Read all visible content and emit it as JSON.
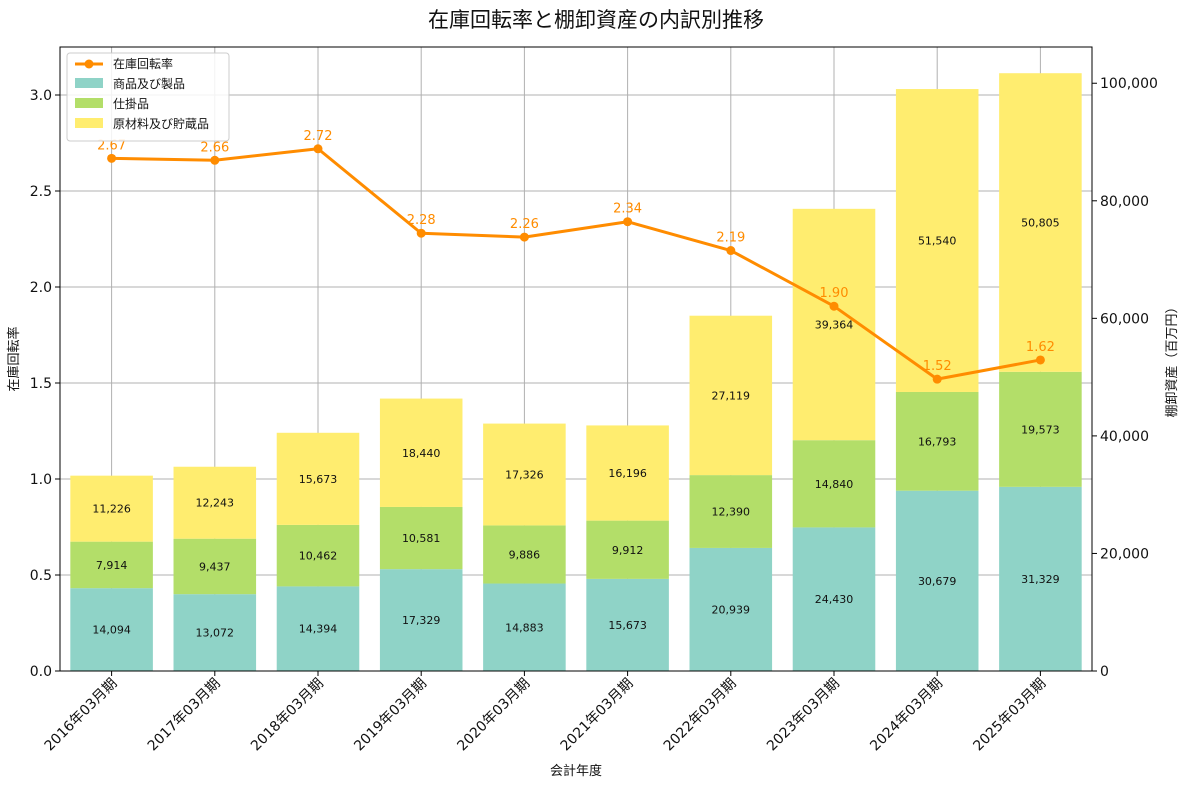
{
  "chart_data": {
    "type": "bar",
    "title": "在庫回転率と棚卸資産の内訳別推移",
    "xlabel": "会計年度",
    "ylabel_left": "在庫回転率",
    "ylabel_right": "棚卸資産（百万円）",
    "ylim_left": [
      0,
      3.25
    ],
    "ylim_right": [
      0,
      106166
    ],
    "yticks_left": [
      "0.0",
      "0.5",
      "1.0",
      "1.5",
      "2.0",
      "2.5",
      "3.0"
    ],
    "yticks_right": [
      "0",
      "20,000",
      "40,000",
      "60,000",
      "80,000",
      "100,000"
    ],
    "grid": true,
    "legend_position": "top-left",
    "categories": [
      "2016年03月期",
      "2017年03月期",
      "2018年03月期",
      "2019年03月期",
      "2020年03月期",
      "2021年03月期",
      "2022年03月期",
      "2023年03月期",
      "2024年03月期",
      "2025年03月期"
    ],
    "series": [
      {
        "name": "商品及び製品",
        "kind": "bar",
        "color": "#8fd3c7",
        "values": [
          14094,
          13072,
          14394,
          17329,
          14883,
          15673,
          20939,
          24430,
          30679,
          31329
        ],
        "labels": [
          "14,094",
          "13,072",
          "14,394",
          "17,329",
          "14,883",
          "15,673",
          "20,939",
          "24,430",
          "30,679",
          "31,329"
        ]
      },
      {
        "name": "仕掛品",
        "kind": "bar",
        "color": "#b3de69",
        "values": [
          7914,
          9437,
          10462,
          10581,
          9886,
          9912,
          12390,
          14840,
          16793,
          19573
        ],
        "labels": [
          "7,914",
          "9,437",
          "10,462",
          "10,581",
          "9,886",
          "9,912",
          "12,390",
          "14,840",
          "16,793",
          "19,573"
        ]
      },
      {
        "name": "原材料及び貯蔵品",
        "kind": "bar",
        "color": "#ffed6f",
        "values": [
          11226,
          12243,
          15673,
          18440,
          17326,
          16196,
          27119,
          39364,
          51540,
          50805
        ],
        "labels": [
          "11,226",
          "12,243",
          "15,673",
          "18,440",
          "17,326",
          "16,196",
          "27,119",
          "39,364",
          "51,540",
          "50,805"
        ]
      },
      {
        "name": "在庫回転率",
        "kind": "line",
        "color": "#ff8c00",
        "values": [
          2.67,
          2.66,
          2.72,
          2.28,
          2.26,
          2.34,
          2.19,
          1.9,
          1.52,
          1.62
        ],
        "labels": [
          "2.67",
          "2.66",
          "2.72",
          "2.28",
          "2.26",
          "2.34",
          "2.19",
          "1.90",
          "1.52",
          "1.62"
        ]
      }
    ]
  }
}
